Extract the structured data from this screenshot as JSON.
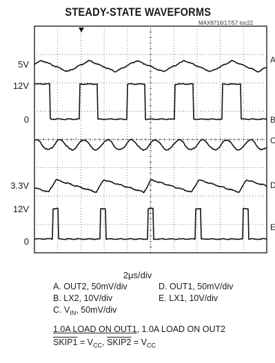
{
  "title": "STEADY-STATE WAVEFORMS",
  "figure_id": "MAX8716/17/57 toc22",
  "y_labels": [
    "5V",
    "12V",
    "0",
    "3.3V",
    "12V",
    "0"
  ],
  "right_labels": [
    "A",
    "B",
    "C",
    "D",
    "E"
  ],
  "time_div": "2μs/div",
  "legend": {
    "a": "A. OUT2, 50mV/div",
    "b": "B. LX2, 10V/div",
    "c_prefix": "C. V",
    "c_sub": "IN",
    "c_suffix": ", 50mV/div",
    "d": "D. OUT1, 50mV/div",
    "e": "E. LX1, 10V/div"
  },
  "conditions": {
    "load1_amount": "1.0A",
    "load1_text": " LOAD ON ",
    "load1_out": "OUT1",
    "load2_text": ", 1.0A LOAD ON OUT2",
    "skip1": "SKIP1",
    "eq1": " = V",
    "cc1": "CC",
    "comma": ", ",
    "skip2": "SKIP2",
    "eq2": " = V",
    "cc2": "CC"
  },
  "colors": {
    "trace": "#111111",
    "grid": "#444444"
  },
  "chart_data": {
    "type": "line",
    "title": "STEADY-STATE WAVEFORMS",
    "xlabel": "2μs/div",
    "x_divisions": 10,
    "y_divisions": 8,
    "grid": true,
    "series": [
      {
        "name": "A. OUT2, 50mV/div",
        "label": "A",
        "shape": "triangle",
        "level": "5V",
        "period_div": 2.05
      },
      {
        "name": "B. LX2, 10V/div",
        "label": "B",
        "shape": "pulse",
        "level_high": "12V",
        "level_low": "0",
        "period_div": 2.05,
        "duty": 0.38
      },
      {
        "name": "C. VIN, 50mV/div",
        "label": "C",
        "shape": "ripple",
        "period_div": 1.02
      },
      {
        "name": "D. OUT1, 50mV/div",
        "label": "D",
        "shape": "sawtooth",
        "level": "3.3V",
        "period_div": 2.05
      },
      {
        "name": "E. LX1, 10V/div",
        "label": "E",
        "shape": "pulse",
        "level_high": "12V",
        "level_low": "0",
        "period_div": 2.05,
        "duty": 0.12
      }
    ]
  }
}
